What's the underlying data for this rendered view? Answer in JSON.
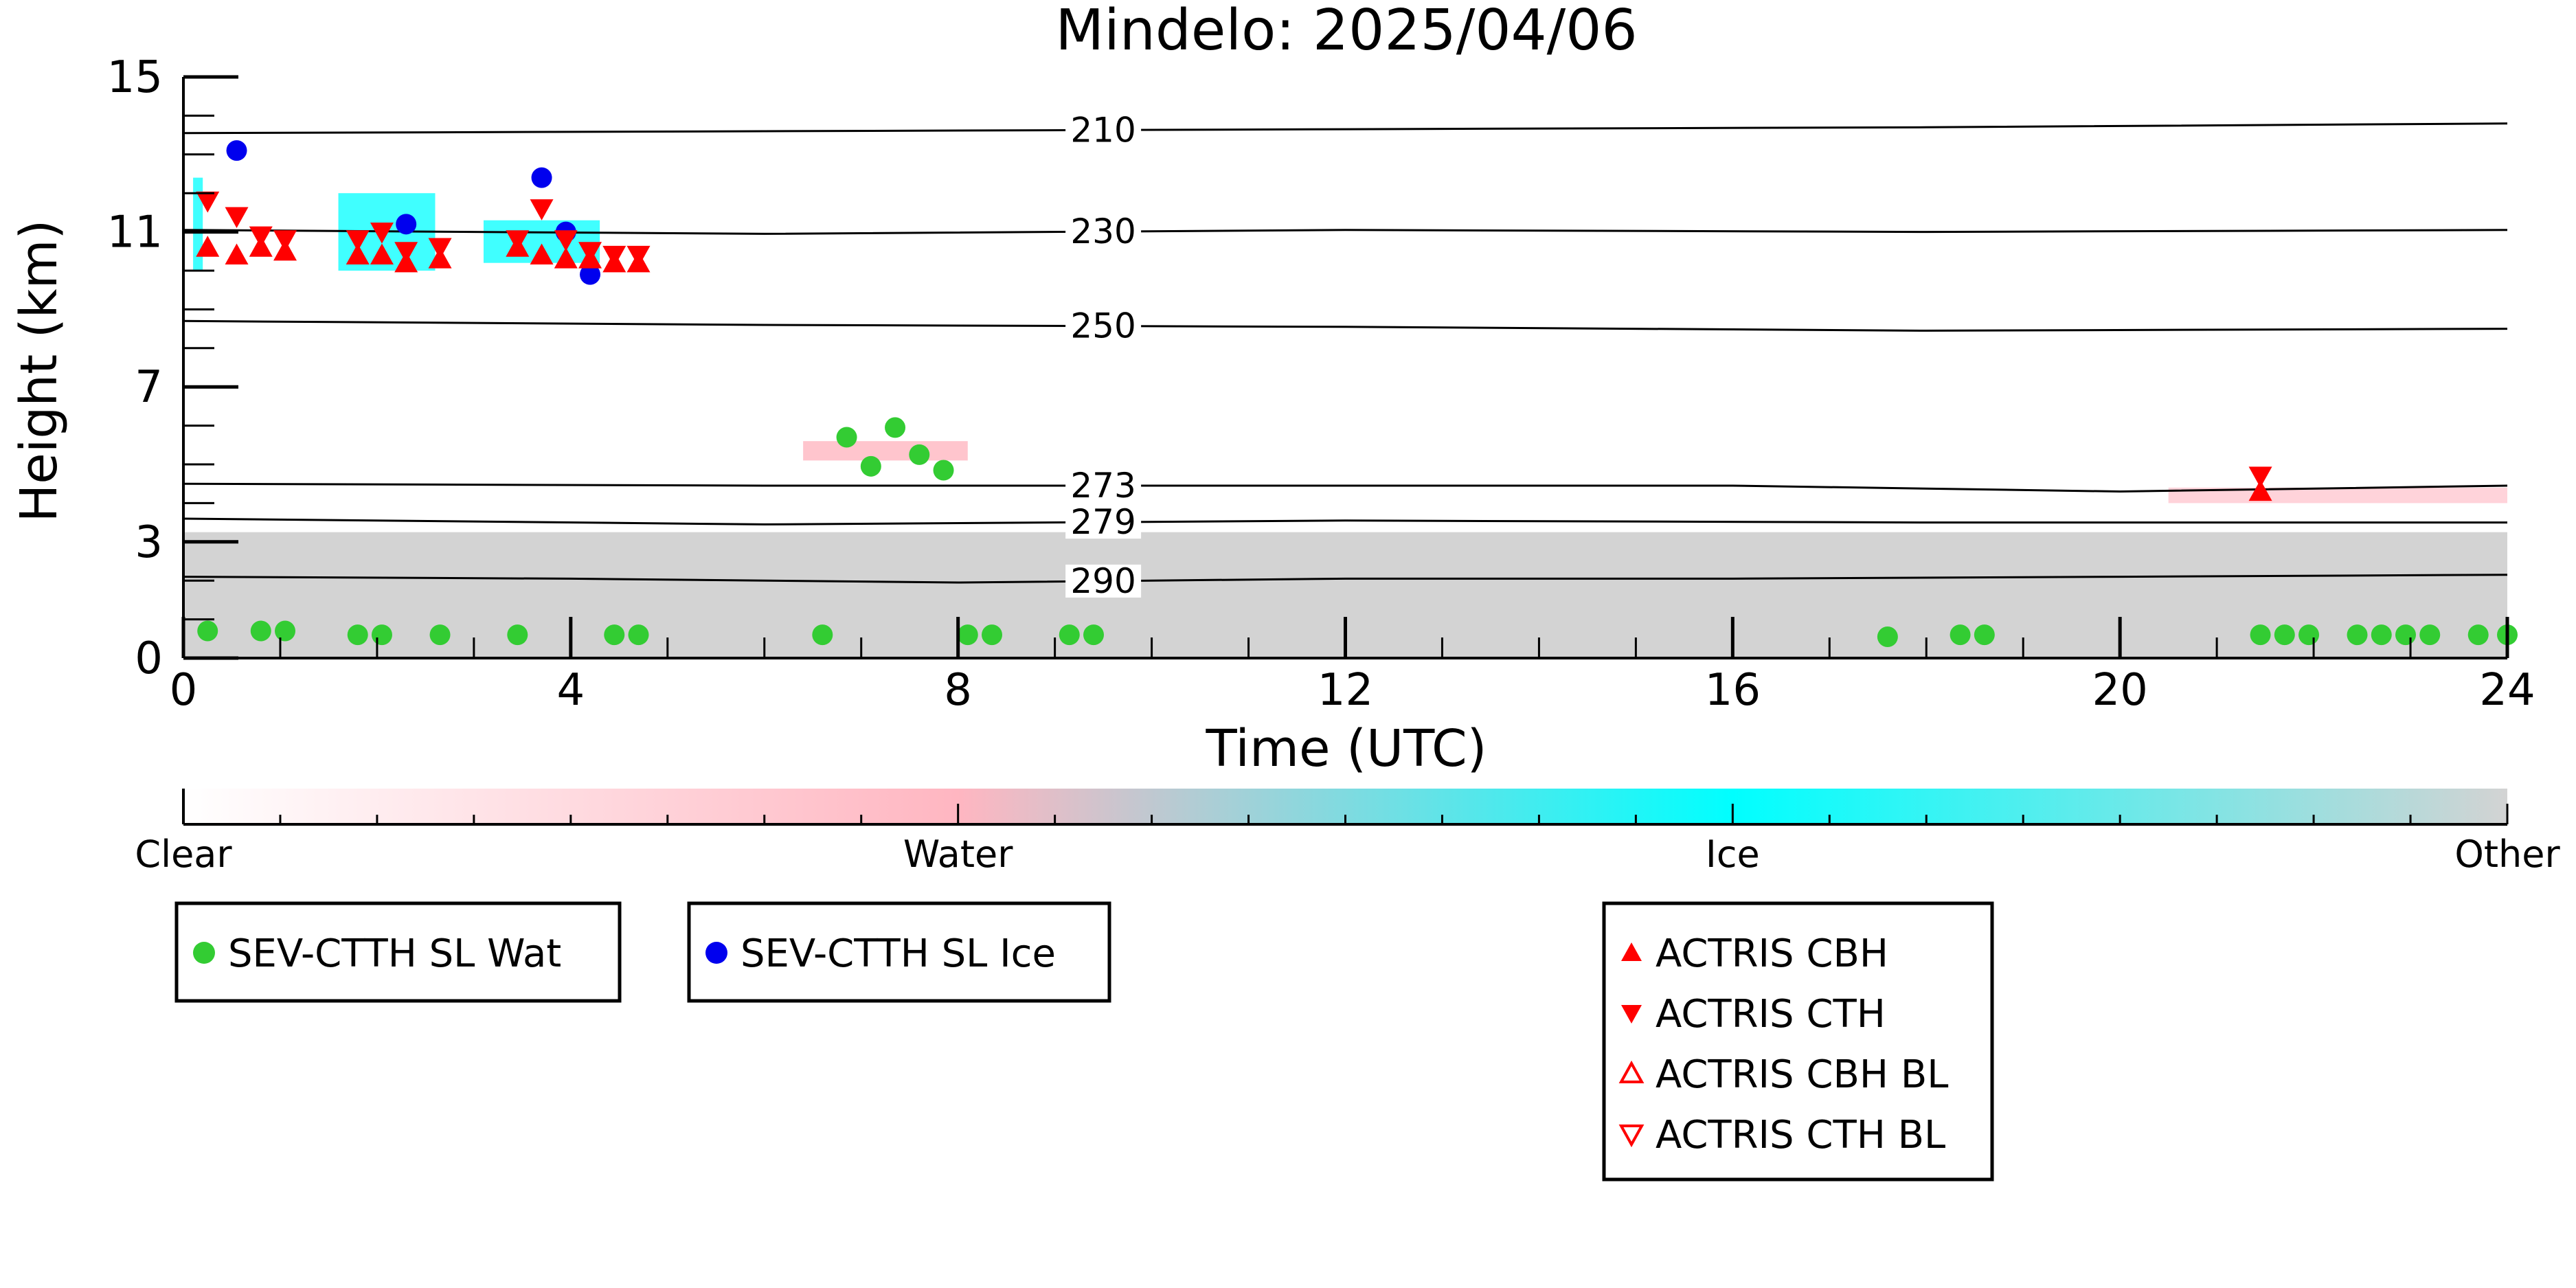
{
  "chart_data": {
    "type": "scatter",
    "title": "Mindelo: 2025/04/06",
    "xlabel": "Time (UTC)",
    "ylabel": "Height (km)",
    "xlim": [
      0,
      24
    ],
    "ylim": [
      0,
      15
    ],
    "xticks": [
      "0",
      "4",
      "8",
      "12",
      "16",
      "20",
      "24"
    ],
    "yticks": [
      "0",
      "3",
      "7",
      "11",
      "15"
    ],
    "colorbar": {
      "labels": [
        "Clear",
        "Water",
        "Ice",
        "Other"
      ],
      "colors": [
        "#ffffff",
        "#ffb6c1",
        "#00ffff",
        "#d3d3d3"
      ]
    },
    "isotherms": [
      {
        "label": "210",
        "points": [
          [
            0,
            13.55
          ],
          [
            6,
            13.6
          ],
          [
            12,
            13.65
          ],
          [
            18,
            13.7
          ],
          [
            24,
            13.8
          ]
        ]
      },
      {
        "label": "230",
        "points": [
          [
            0,
            11.05
          ],
          [
            6,
            10.95
          ],
          [
            12,
            11.05
          ],
          [
            18,
            11.0
          ],
          [
            24,
            11.05
          ]
        ]
      },
      {
        "label": "250",
        "points": [
          [
            0,
            8.7
          ],
          [
            6,
            8.6
          ],
          [
            12,
            8.55
          ],
          [
            18,
            8.45
          ],
          [
            24,
            8.5
          ]
        ]
      },
      {
        "label": "273",
        "points": [
          [
            0,
            4.5
          ],
          [
            6,
            4.45
          ],
          [
            12,
            4.45
          ],
          [
            16,
            4.45
          ],
          [
            20,
            4.3
          ],
          [
            24,
            4.45
          ]
        ]
      },
      {
        "label": "279",
        "points": [
          [
            0,
            3.6
          ],
          [
            6,
            3.45
          ],
          [
            12,
            3.55
          ],
          [
            18,
            3.5
          ],
          [
            24,
            3.5
          ]
        ]
      },
      {
        "label": "290",
        "points": [
          [
            0,
            2.1
          ],
          [
            4,
            2.05
          ],
          [
            8,
            1.95
          ],
          [
            12,
            2.05
          ],
          [
            16,
            2.05
          ],
          [
            20,
            2.1
          ],
          [
            24,
            2.15
          ]
        ]
      }
    ],
    "series": [
      {
        "name": "SEV-CTTH SL Wat",
        "color": "#33cc33",
        "marker": "circle",
        "x": [
          0.25,
          0.8,
          1.05,
          1.8,
          2.05,
          2.65,
          3.45,
          4.45,
          4.7,
          6.6,
          6.85,
          7.1,
          7.35,
          7.6,
          7.85,
          8.1,
          8.35,
          9.15,
          9.4,
          17.6,
          18.35,
          18.6,
          21.45,
          21.7,
          21.95,
          22.45,
          22.7,
          22.95,
          23.2,
          23.7,
          24.0
        ],
        "y": [
          0.7,
          0.7,
          0.7,
          0.6,
          0.6,
          0.6,
          0.6,
          0.6,
          0.6,
          0.6,
          5.7,
          4.95,
          5.95,
          5.25,
          4.85,
          0.6,
          0.6,
          0.6,
          0.6,
          0.55,
          0.6,
          0.6,
          0.6,
          0.6,
          0.6,
          0.6,
          0.6,
          0.6,
          0.6,
          0.6,
          0.6
        ]
      },
      {
        "name": "SEV-CTTH SL Ice",
        "color": "#0000ee",
        "marker": "circle",
        "x": [
          0.55,
          2.3,
          3.7,
          3.95,
          4.2
        ],
        "y": [
          13.1,
          11.2,
          12.4,
          11.0,
          9.9
        ]
      },
      {
        "name": "ACTRIS CBH",
        "color": "#ff0000",
        "marker": "triangle-up",
        "x": [
          0.25,
          0.55,
          0.8,
          1.05,
          1.8,
          2.05,
          2.3,
          2.65,
          3.45,
          3.7,
          3.95,
          4.2,
          4.45,
          4.7,
          21.45
        ],
        "y": [
          10.6,
          10.4,
          10.6,
          10.5,
          10.4,
          10.4,
          10.2,
          10.3,
          10.6,
          10.4,
          10.3,
          10.3,
          10.2,
          10.2,
          4.3
        ]
      },
      {
        "name": "ACTRIS CTH",
        "color": "#ff0000",
        "marker": "triangle-down",
        "x": [
          0.25,
          0.55,
          0.8,
          1.05,
          1.8,
          2.05,
          2.3,
          2.65,
          3.45,
          3.7,
          3.95,
          4.2,
          4.45,
          4.7,
          21.45
        ],
        "y": [
          11.8,
          11.4,
          10.9,
          10.8,
          10.8,
          11.0,
          10.5,
          10.6,
          10.8,
          11.6,
          10.8,
          10.5,
          10.4,
          10.4,
          4.7
        ]
      },
      {
        "name": "ACTRIS CBH BL",
        "color": "#ff0000",
        "marker": "triangle-up-open",
        "x": [],
        "y": []
      },
      {
        "name": "ACTRIS CTH BL",
        "color": "#ff0000",
        "marker": "triangle-down-open",
        "x": [],
        "y": []
      }
    ],
    "legend_groups": [
      [
        "SEV-CTTH SL Wat"
      ],
      [
        "SEV-CTTH SL Ice"
      ],
      [
        "ACTRIS CBH",
        "ACTRIS CTH",
        "ACTRIS CBH BL",
        "ACTRIS CTH BL"
      ]
    ]
  }
}
